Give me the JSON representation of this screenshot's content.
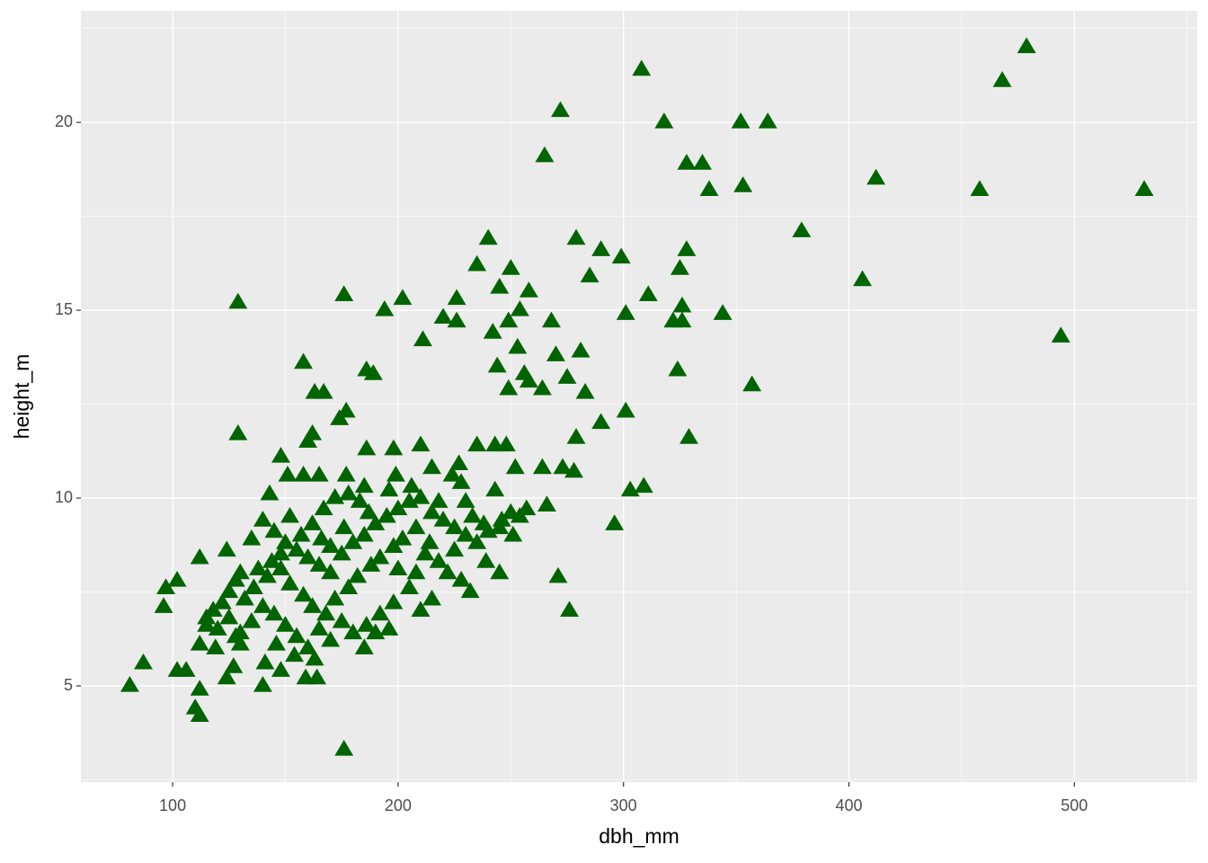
{
  "chart_data": {
    "type": "scatter",
    "marker": "triangle",
    "color": "#006400",
    "x_label": "dbh_mm",
    "y_label": "height_m",
    "grid": true,
    "minor_grid": true,
    "xlim": [
      59.3,
      554.5
    ],
    "ylim": [
      2.44,
      22.97
    ],
    "xticks": [
      100,
      200,
      300,
      400,
      500
    ],
    "yticks": [
      5,
      10,
      15,
      20
    ],
    "x": [
      478.8,
      308,
      468,
      272,
      318,
      352,
      364,
      265,
      328,
      335,
      412,
      338,
      353,
      458,
      531,
      379,
      240,
      279,
      290,
      299,
      328,
      235,
      250,
      325,
      285,
      406,
      245,
      258,
      311,
      129,
      176,
      202,
      226,
      326,
      194,
      254,
      344,
      301,
      220,
      226,
      249,
      268,
      322,
      326,
      494,
      211,
      242,
      253,
      270,
      281,
      158,
      244,
      256,
      186,
      189,
      324,
      275,
      258,
      357,
      264,
      249,
      163,
      167,
      283,
      301,
      177,
      174,
      290,
      162,
      129,
      329,
      160,
      279,
      235,
      248,
      243,
      148,
      186,
      198,
      210,
      252,
      264,
      273,
      278,
      227,
      215,
      151,
      177,
      199,
      303,
      309,
      143,
      243,
      266,
      257,
      296,
      271,
      276,
      176,
      81,
      87,
      97,
      96,
      102,
      102,
      106,
      112,
      110,
      112,
      112,
      124,
      124,
      127,
      128,
      141,
      140,
      148,
      159,
      164,
      185,
      115,
      112,
      119,
      130,
      245,
      239,
      251,
      246,
      230,
      140,
      145,
      135,
      150,
      155,
      160,
      165,
      170,
      175,
      180,
      185,
      190,
      195,
      200,
      205,
      210,
      215,
      220,
      225,
      230,
      235,
      240,
      130,
      128,
      125,
      122,
      118,
      115,
      120,
      132,
      136,
      142,
      148,
      152,
      158,
      162,
      168,
      172,
      178,
      182,
      188,
      192,
      198,
      202,
      208,
      212,
      218,
      222,
      228,
      232,
      205,
      198,
      192,
      186,
      180,
      175,
      170,
      165,
      160,
      155,
      150,
      145,
      140,
      135,
      130,
      125,
      146,
      154,
      163,
      190,
      196,
      210,
      215,
      225,
      233,
      238,
      245,
      250,
      254,
      162,
      167,
      172,
      178,
      183,
      196,
      187,
      176,
      166,
      157,
      152,
      144,
      138,
      158,
      165,
      148,
      170,
      200,
      208,
      214,
      185,
      224,
      228,
      206,
      218
    ],
    "y": [
      22.0,
      21.4,
      21.1,
      20.3,
      20.0,
      20.0,
      20.0,
      19.1,
      18.9,
      18.9,
      18.5,
      18.2,
      18.3,
      18.2,
      18.2,
      17.1,
      16.9,
      16.9,
      16.6,
      16.4,
      16.6,
      16.2,
      16.1,
      16.1,
      15.9,
      15.8,
      15.6,
      15.5,
      15.4,
      15.2,
      15.4,
      15.3,
      15.3,
      15.1,
      15.0,
      15.0,
      14.9,
      14.9,
      14.8,
      14.7,
      14.7,
      14.7,
      14.7,
      14.7,
      14.3,
      14.2,
      14.4,
      14.0,
      13.8,
      13.9,
      13.6,
      13.5,
      13.3,
      13.4,
      13.3,
      13.4,
      13.2,
      13.1,
      13.0,
      12.9,
      12.9,
      12.8,
      12.8,
      12.8,
      12.3,
      12.3,
      12.1,
      12.0,
      11.7,
      11.7,
      11.6,
      11.5,
      11.6,
      11.4,
      11.4,
      11.4,
      11.1,
      11.3,
      11.3,
      11.4,
      10.8,
      10.8,
      10.8,
      10.7,
      10.9,
      10.8,
      10.6,
      10.6,
      10.6,
      10.2,
      10.3,
      10.1,
      10.2,
      9.8,
      9.7,
      9.3,
      7.9,
      7.0,
      3.3,
      5.0,
      5.6,
      7.6,
      7.1,
      7.8,
      5.4,
      5.4,
      4.9,
      4.4,
      4.2,
      8.4,
      8.6,
      5.2,
      5.5,
      6.3,
      5.6,
      5.0,
      5.4,
      5.2,
      5.2,
      6.0,
      6.6,
      6.1,
      6.0,
      6.1,
      8.0,
      8.3,
      9.0,
      9.4,
      9.9,
      9.4,
      9.1,
      8.9,
      8.8,
      8.6,
      8.4,
      8.2,
      8.0,
      8.5,
      8.8,
      9.0,
      9.3,
      9.5,
      9.7,
      9.9,
      10.0,
      9.6,
      9.4,
      9.2,
      9.0,
      8.8,
      9.1,
      8.0,
      7.8,
      7.5,
      7.2,
      7.0,
      6.8,
      6.5,
      7.3,
      7.6,
      7.9,
      8.1,
      7.7,
      7.4,
      7.1,
      6.9,
      7.3,
      7.6,
      7.9,
      8.2,
      8.4,
      8.7,
      8.9,
      9.2,
      8.5,
      8.3,
      8.0,
      7.8,
      7.5,
      7.6,
      7.2,
      6.9,
      6.6,
      6.4,
      6.7,
      6.2,
      6.5,
      6.0,
      6.3,
      6.6,
      6.9,
      7.1,
      6.7,
      6.4,
      6.8,
      6.1,
      5.8,
      5.7,
      6.4,
      6.5,
      7.0,
      7.3,
      8.6,
      9.5,
      9.3,
      9.2,
      9.6,
      9.5,
      9.3,
      9.7,
      10.0,
      10.1,
      9.9,
      10.2,
      9.6,
      9.2,
      8.9,
      9.0,
      9.5,
      8.3,
      8.1,
      10.6,
      10.6,
      8.5,
      8.7,
      8.1,
      8.0,
      8.8,
      10.3,
      10.6,
      10.4,
      10.3,
      9.9
    ]
  }
}
